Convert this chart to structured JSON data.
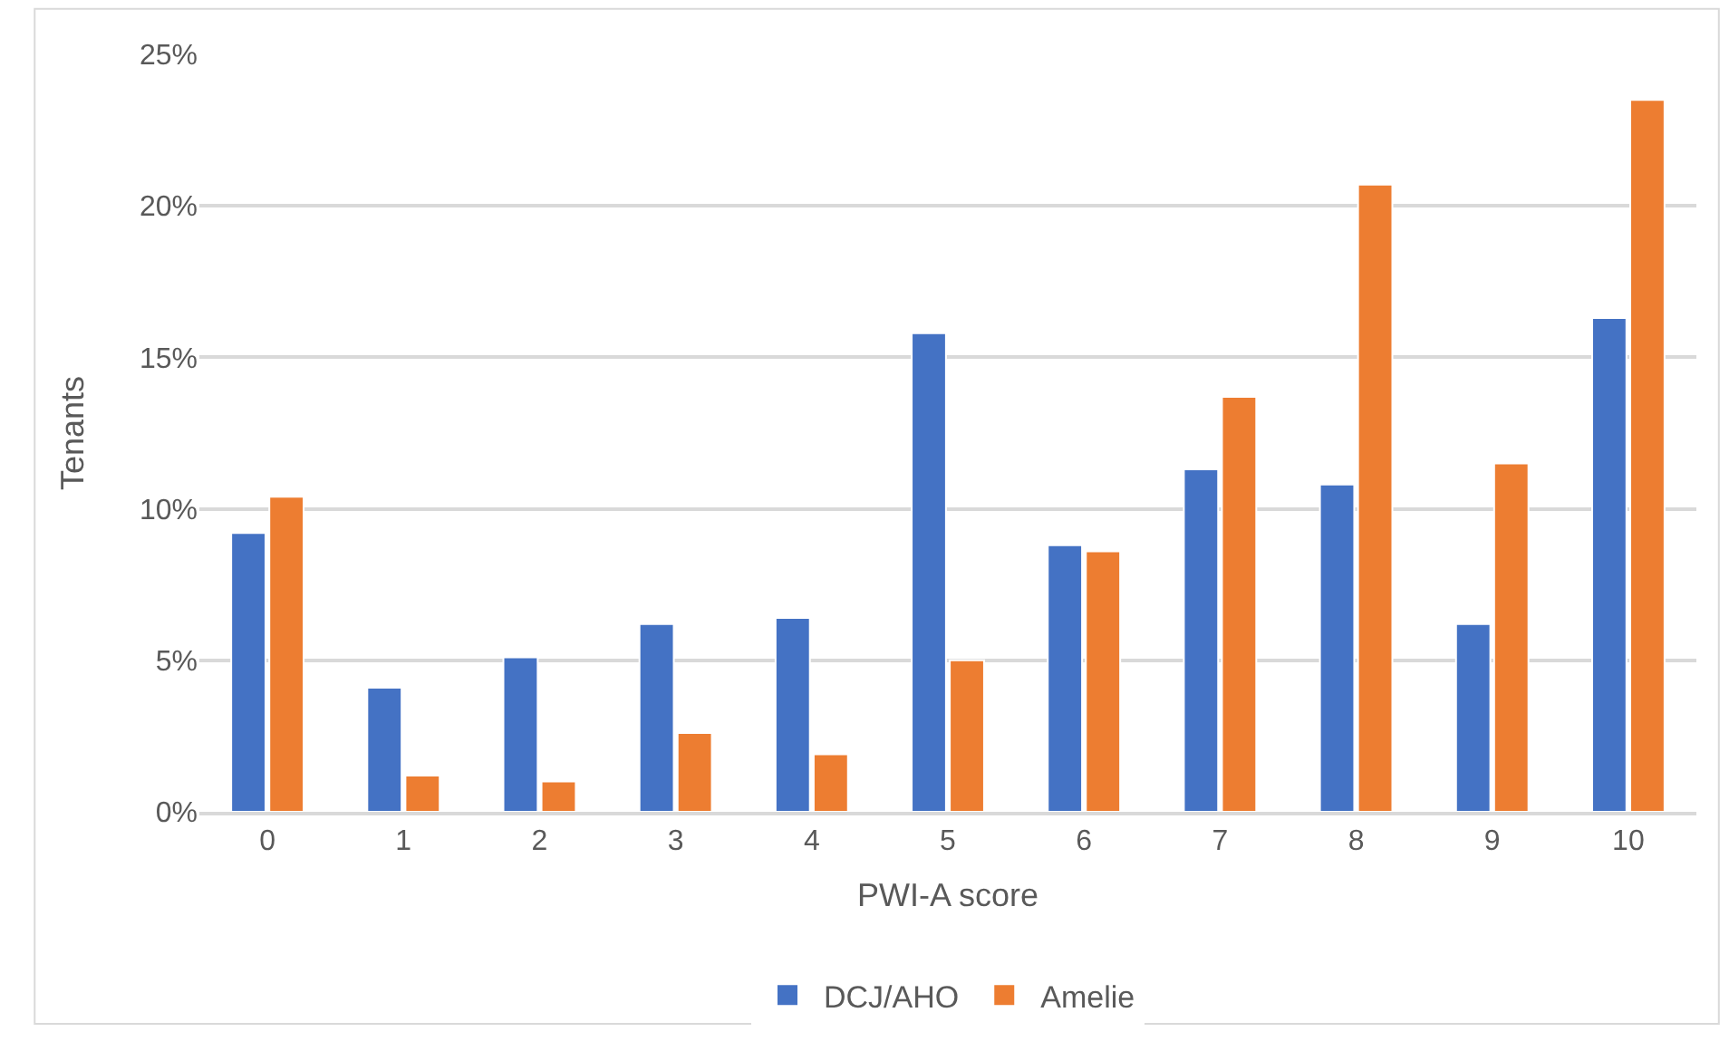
{
  "chart_data": {
    "type": "bar",
    "xlabel": "PWI-A score",
    "ylabel": "Tenants",
    "categories": [
      "0",
      "1",
      "2",
      "3",
      "4",
      "5",
      "6",
      "7",
      "8",
      "9",
      "10"
    ],
    "series": [
      {
        "name": "DCJ/AHO",
        "color": "#4472c4",
        "values": [
          9.2,
          4.1,
          5.1,
          6.2,
          6.4,
          15.8,
          8.8,
          11.3,
          10.8,
          6.2,
          16.3
        ]
      },
      {
        "name": "Amelie",
        "color": "#ed7d31",
        "values": [
          10.4,
          1.2,
          1.0,
          2.6,
          1.9,
          5.0,
          8.6,
          13.7,
          20.7,
          11.5,
          23.5
        ]
      }
    ],
    "ylim": [
      0,
      25
    ],
    "yticks": [
      {
        "value": 0,
        "label": "0%"
      },
      {
        "value": 5,
        "label": "5%"
      },
      {
        "value": 10,
        "label": "10%"
      },
      {
        "value": 15,
        "label": "15%"
      },
      {
        "value": 20,
        "label": "20%"
      },
      {
        "value": 25,
        "label": "25%"
      }
    ],
    "grid": "y",
    "legend": "bottom"
  }
}
